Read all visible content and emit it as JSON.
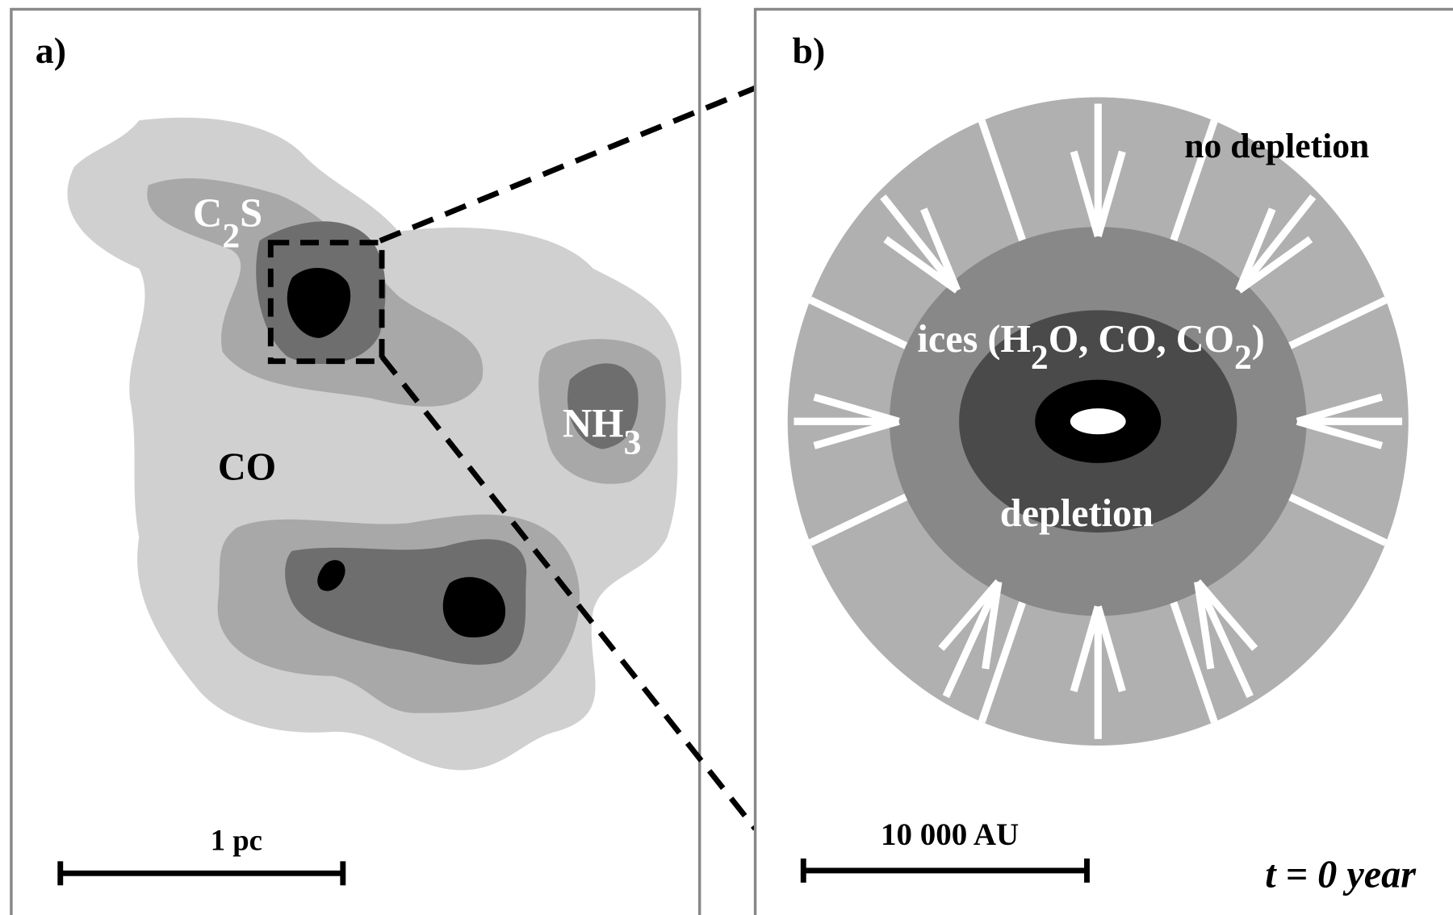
{
  "panel_a": {
    "label": "a)",
    "c2s": [
      "C",
      "2",
      "S"
    ],
    "nh3": [
      "NH",
      "3"
    ],
    "co": "CO",
    "scale": "1 pc"
  },
  "panel_b": {
    "label": "b)",
    "no_depletion": "no depletion",
    "ices": [
      "ices (H",
      "2",
      "O, CO, CO",
      "2",
      ")"
    ],
    "depletion": "depletion",
    "scale": "10 000 AU",
    "time": "t = 0  year"
  }
}
